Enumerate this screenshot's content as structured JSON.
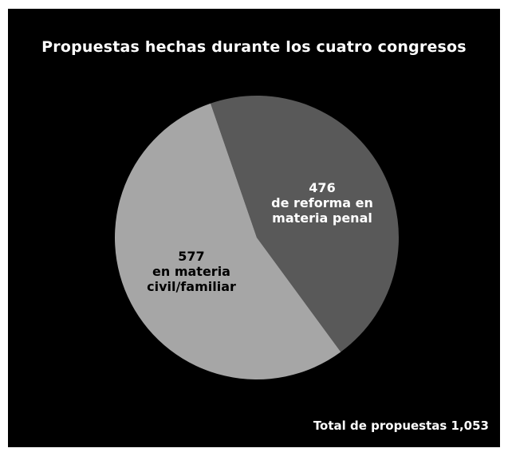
{
  "chart_data": {
    "type": "pie",
    "title": "Propuestas hechas durante los cuatro congresos",
    "slices": [
      {
        "value": 476,
        "label_lines": [
          "476",
          "de reforma en",
          "materia penal"
        ],
        "color": "#595959",
        "label_color": "#ffffff"
      },
      {
        "value": 577,
        "label_lines": [
          "577",
          "en materia",
          "civil/familiar"
        ],
        "color": "#a6a6a6",
        "label_color": "#000000"
      }
    ],
    "total_label": "Total de propuestas 1,053",
    "background": "#000000"
  }
}
